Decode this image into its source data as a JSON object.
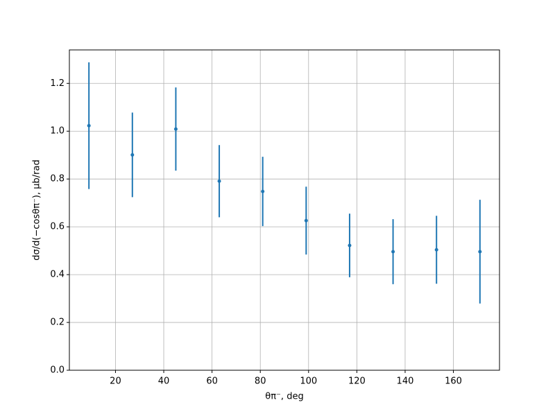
{
  "chart_data": {
    "type": "errorbar",
    "xlabel": "θπ⁻, deg",
    "ylabel": "dσ/d(−cosθπ⁻), μb/rad",
    "x": [
      9,
      27,
      45,
      63,
      81,
      99,
      117,
      135,
      153,
      171
    ],
    "values": [
      1.023,
      0.901,
      1.009,
      0.791,
      0.748,
      0.626,
      0.522,
      0.496,
      0.504,
      0.496
    ],
    "errors": [
      0.265,
      0.177,
      0.174,
      0.151,
      0.145,
      0.142,
      0.133,
      0.136,
      0.142,
      0.217
    ],
    "color": "#1f77b4",
    "xlim": [
      0.9,
      179.1
    ],
    "ylim": [
      0,
      1.34
    ],
    "xticks": [
      20,
      40,
      60,
      80,
      100,
      120,
      140,
      160
    ],
    "yticks": [
      {
        "value": 0,
        "label": "0.0"
      },
      {
        "value": 0.2,
        "label": "0.2"
      },
      {
        "value": 0.4,
        "label": "0.4"
      },
      {
        "value": 0.6,
        "label": "0.6"
      },
      {
        "value": 0.8,
        "label": "0.8"
      },
      {
        "value": 1.0,
        "label": "1.0"
      },
      {
        "value": 1.2,
        "label": "1.2"
      }
    ],
    "grid": true
  }
}
